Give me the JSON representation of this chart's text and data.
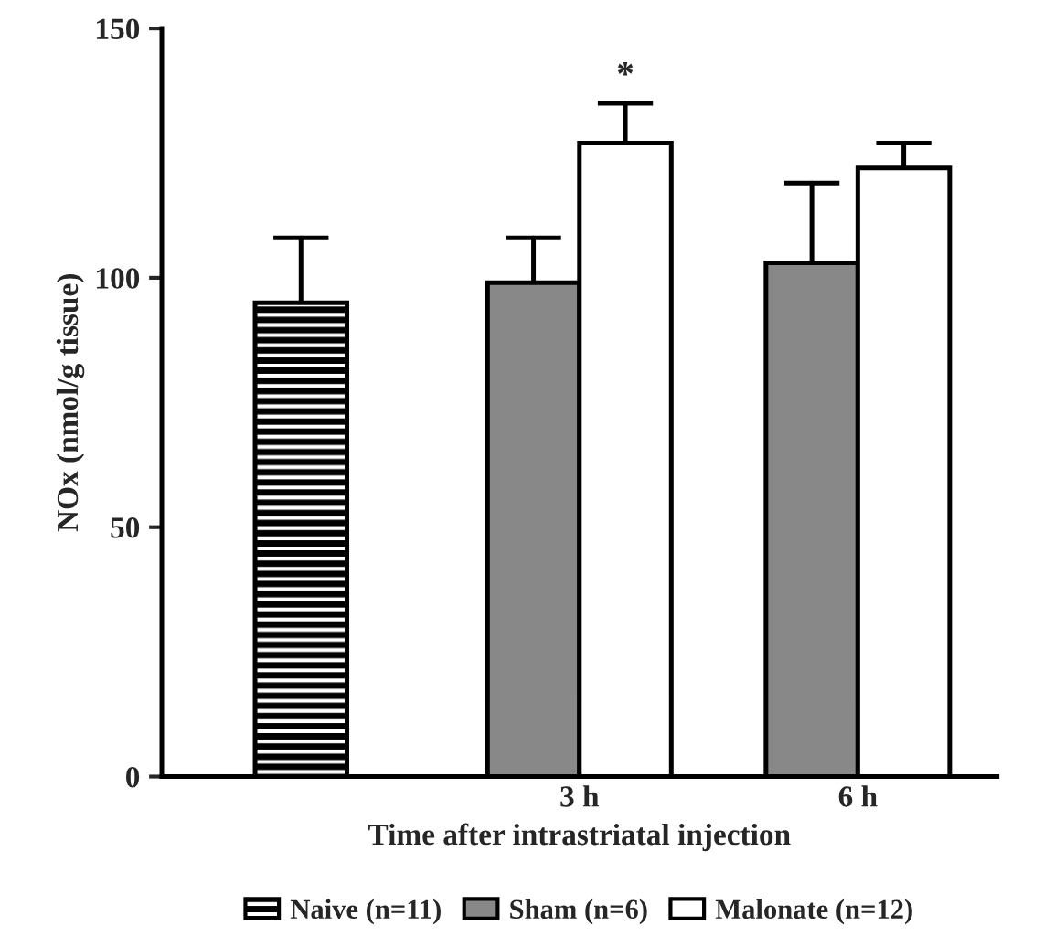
{
  "chart_data": {
    "type": "bar",
    "xlabel": "Time after intrastriatal injection",
    "ylabel": "NOx (nmol/g tissue)",
    "categories": [
      null,
      "3 h",
      "6 h"
    ],
    "series": [
      {
        "name": "Naive (n=11)",
        "color": "#000000",
        "values": [
          95,
          null,
          null
        ],
        "errors": [
          [
            95,
            108
          ],
          null,
          null
        ]
      },
      {
        "name": "Sham (n=6)",
        "color": "#888888",
        "values": [
          null,
          99,
          103
        ],
        "errors": [
          null,
          [
            99,
            108
          ],
          [
            103,
            119
          ]
        ]
      },
      {
        "name": "Malonate (n=12)",
        "color": "#ffffff",
        "values": [
          null,
          127,
          122
        ],
        "errors": [
          null,
          [
            127,
            135
          ],
          [
            122,
            127
          ]
        ]
      }
    ],
    "annotations": [
      "*"
    ],
    "ylim": [
      0,
      150
    ],
    "yticks": [
      0,
      50,
      100,
      150
    ],
    "grid": false,
    "legend": "bottom"
  }
}
